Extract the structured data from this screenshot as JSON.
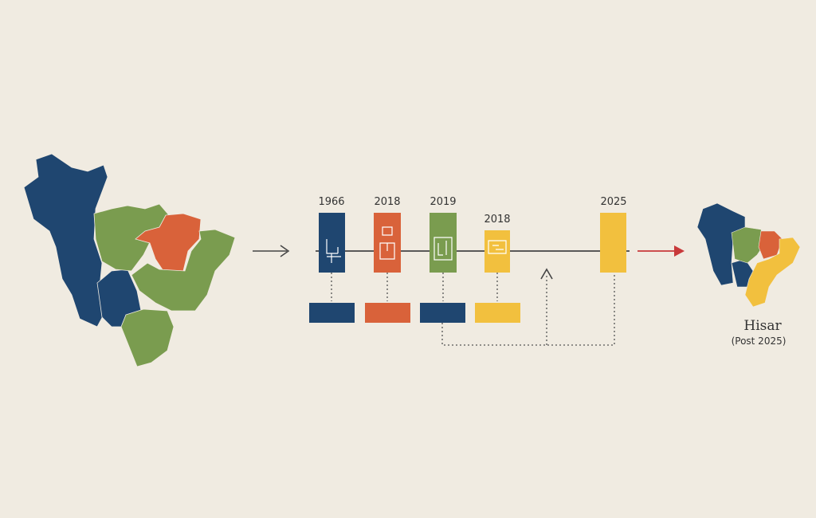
{
  "timeline": {
    "nodes": [
      {
        "label": "1966"
      },
      {
        "label": "2018"
      },
      {
        "label": "2019"
      },
      {
        "label": "2018"
      },
      {
        "label": "2025"
      }
    ]
  },
  "result": {
    "title": "Hisar",
    "subtitle": "(Post 2025)"
  }
}
